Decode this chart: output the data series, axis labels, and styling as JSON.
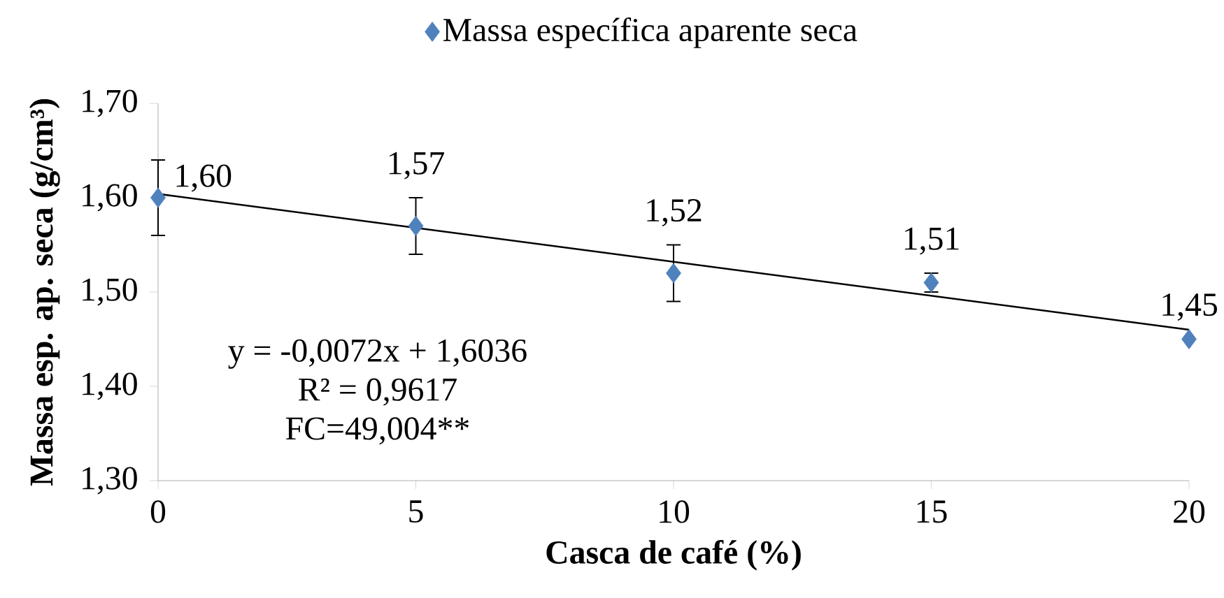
{
  "chart_data": {
    "type": "scatter",
    "xlabel": "Casca de café (%)",
    "ylabel": "Massa esp. ap. seca (g/cm³)",
    "xlim": [
      0,
      20
    ],
    "xticks": [
      0,
      5,
      10,
      15,
      20
    ],
    "ylim": [
      1.3,
      1.7
    ],
    "yticks": [
      {
        "value": 1.3,
        "label": "1,30"
      },
      {
        "value": 1.4,
        "label": "1,40"
      },
      {
        "value": 1.5,
        "label": "1,50"
      },
      {
        "value": 1.6,
        "label": "1,60"
      },
      {
        "value": 1.7,
        "label": "1,70"
      }
    ],
    "series": [
      {
        "name": "Massa específica aparente seca",
        "marker": "diamond",
        "color": "#4f81bd",
        "x": [
          0,
          5,
          10,
          15,
          20
        ],
        "values": [
          1.6,
          1.57,
          1.52,
          1.51,
          1.45
        ],
        "errors": [
          0.04,
          0.03,
          0.03,
          0.01,
          null
        ],
        "value_labels": [
          "1,60",
          "1,57",
          "1,52",
          "1,51",
          "1,45"
        ]
      },
      {
        "type": "line",
        "color": "#000000",
        "x": [
          0,
          20
        ],
        "values": [
          1.604,
          1.46
        ]
      }
    ],
    "annotations": [
      "y = -0,0072x + 1,6036",
      "R² = 0,9617",
      "FC=49,004**"
    ],
    "legend": "top",
    "grid": false
  }
}
